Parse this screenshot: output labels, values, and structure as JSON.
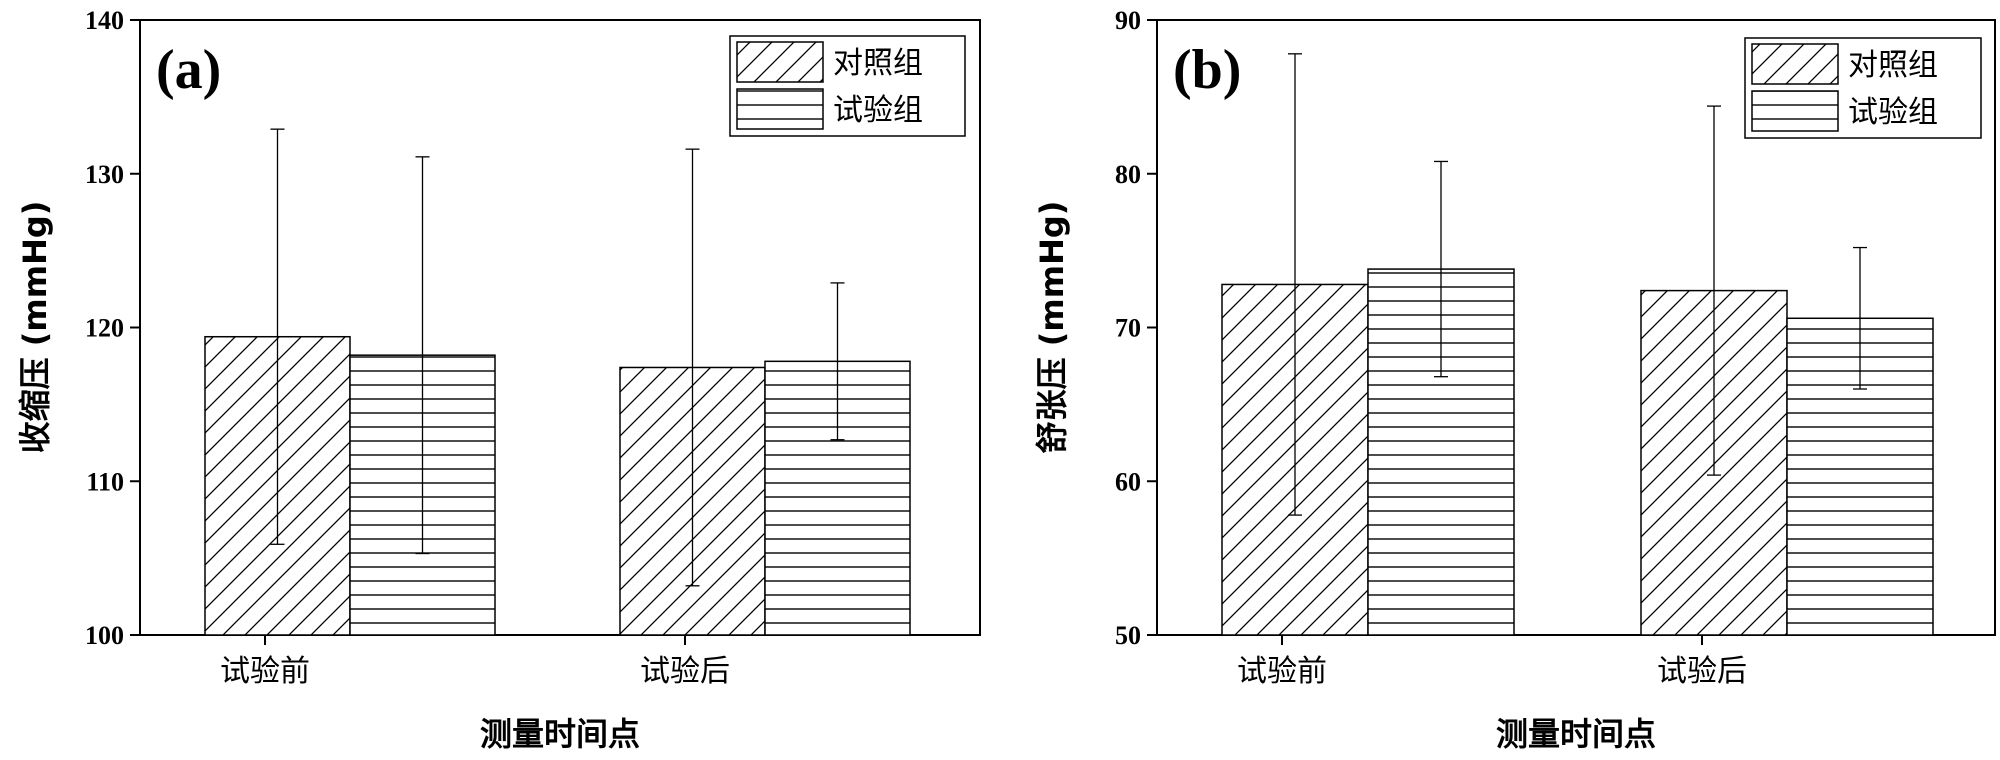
{
  "chart_data": [
    {
      "type": "bar",
      "panel_label": "(a)",
      "xlabel": "测量时间点",
      "ylabel": "收缩压 (mmHg)",
      "categories": [
        "试验前",
        "试验后"
      ],
      "ylim": [
        100,
        140
      ],
      "yticks": [
        100,
        110,
        120,
        130,
        140
      ],
      "grid": false,
      "legend_position": "top-right",
      "series": [
        {
          "name": "对照组",
          "pattern": "diagonal-hatch",
          "values": [
            119.4,
            117.4
          ],
          "error": [
            13.5,
            14.2
          ]
        },
        {
          "name": "试验组",
          "pattern": "horizontal-hatch",
          "values": [
            118.2,
            117.8
          ],
          "error": [
            12.9,
            5.1
          ]
        }
      ]
    },
    {
      "type": "bar",
      "panel_label": "(b)",
      "xlabel": "测量时间点",
      "ylabel": "舒张压 (mmHg)",
      "categories": [
        "试验前",
        "试验后"
      ],
      "ylim": [
        50,
        90
      ],
      "yticks": [
        50,
        60,
        70,
        80,
        90
      ],
      "grid": false,
      "legend_position": "top-right",
      "series": [
        {
          "name": "对照组",
          "pattern": "diagonal-hatch",
          "values": [
            72.8,
            72.4
          ],
          "error": [
            15.0,
            12.0
          ]
        },
        {
          "name": "试验组",
          "pattern": "horizontal-hatch",
          "values": [
            73.8,
            70.6
          ],
          "error": [
            7.0,
            4.6
          ]
        }
      ]
    }
  ]
}
